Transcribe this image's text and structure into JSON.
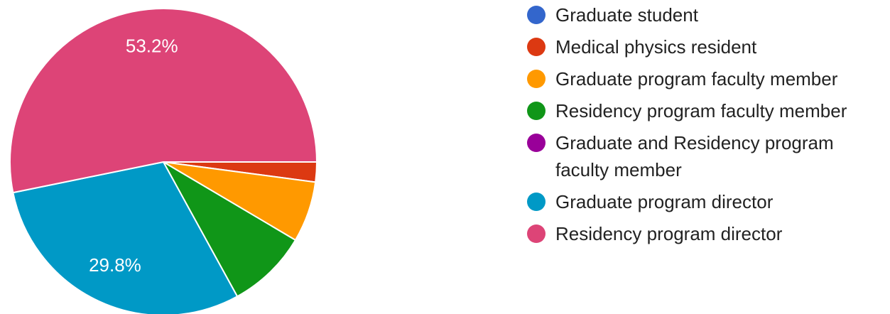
{
  "chart_data": {
    "type": "pie",
    "categories": [
      "Graduate student",
      "Medical physics resident",
      "Graduate program faculty member",
      "Residency program faculty member",
      "Graduate and Residency program faculty member",
      "Graduate program director",
      "Residency program director"
    ],
    "values": [
      0,
      2.1,
      6.4,
      8.5,
      0,
      29.8,
      53.2
    ],
    "value_labels": [
      null,
      null,
      null,
      null,
      null,
      "29.8%",
      "53.2%"
    ],
    "colors": [
      "#3366cc",
      "#dc3912",
      "#ff9900",
      "#109618",
      "#990099",
      "#0099c6",
      "#dd4477"
    ],
    "legend": "right"
  }
}
